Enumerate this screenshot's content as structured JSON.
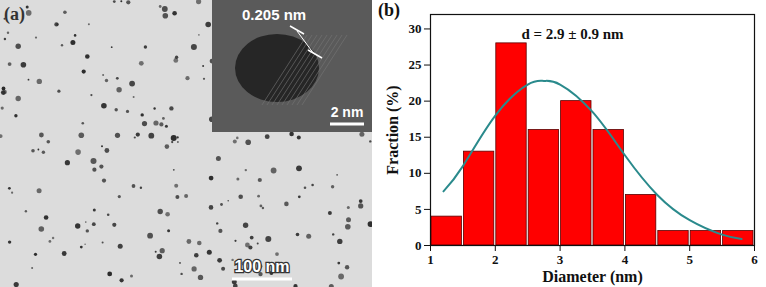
{
  "image_panel": {
    "label": "(a)",
    "scale_bar": "100 nm",
    "inset": {
      "lattice_spacing": "0.205 nm",
      "scale_bar": "2 nm"
    }
  },
  "chart_data": {
    "type": "histogram",
    "label": "(b)",
    "annotation": "d = 2.9 ± 0.9 nm",
    "xlabel": "Diameter (nm)",
    "ylabel": "Fraction (%)",
    "bins": [
      1,
      1.5,
      2,
      2.5,
      3,
      3.5,
      4,
      4.5,
      5,
      5.5,
      6
    ],
    "values": [
      4,
      13,
      28,
      16,
      20,
      16,
      7,
      2,
      2,
      2
    ],
    "color": "#ff0000",
    "fit": {
      "type": "line",
      "color": "#2a8a8c",
      "x": [
        1.2,
        1.5,
        2,
        2.5,
        2.75,
        3,
        3.5,
        4,
        4.5,
        5,
        5.5,
        5.8
      ],
      "values": [
        7.5,
        11,
        18,
        22.3,
        22.8,
        22.3,
        18.5,
        12.5,
        7,
        3.5,
        1.5,
        0.9
      ]
    },
    "xlim": [
      1,
      6
    ],
    "xticks": [
      1,
      2,
      3,
      4,
      5,
      6
    ],
    "ylim": [
      0,
      32
    ],
    "yticks": [
      0,
      5,
      10,
      15,
      20,
      25,
      30
    ],
    "grid": false
  }
}
